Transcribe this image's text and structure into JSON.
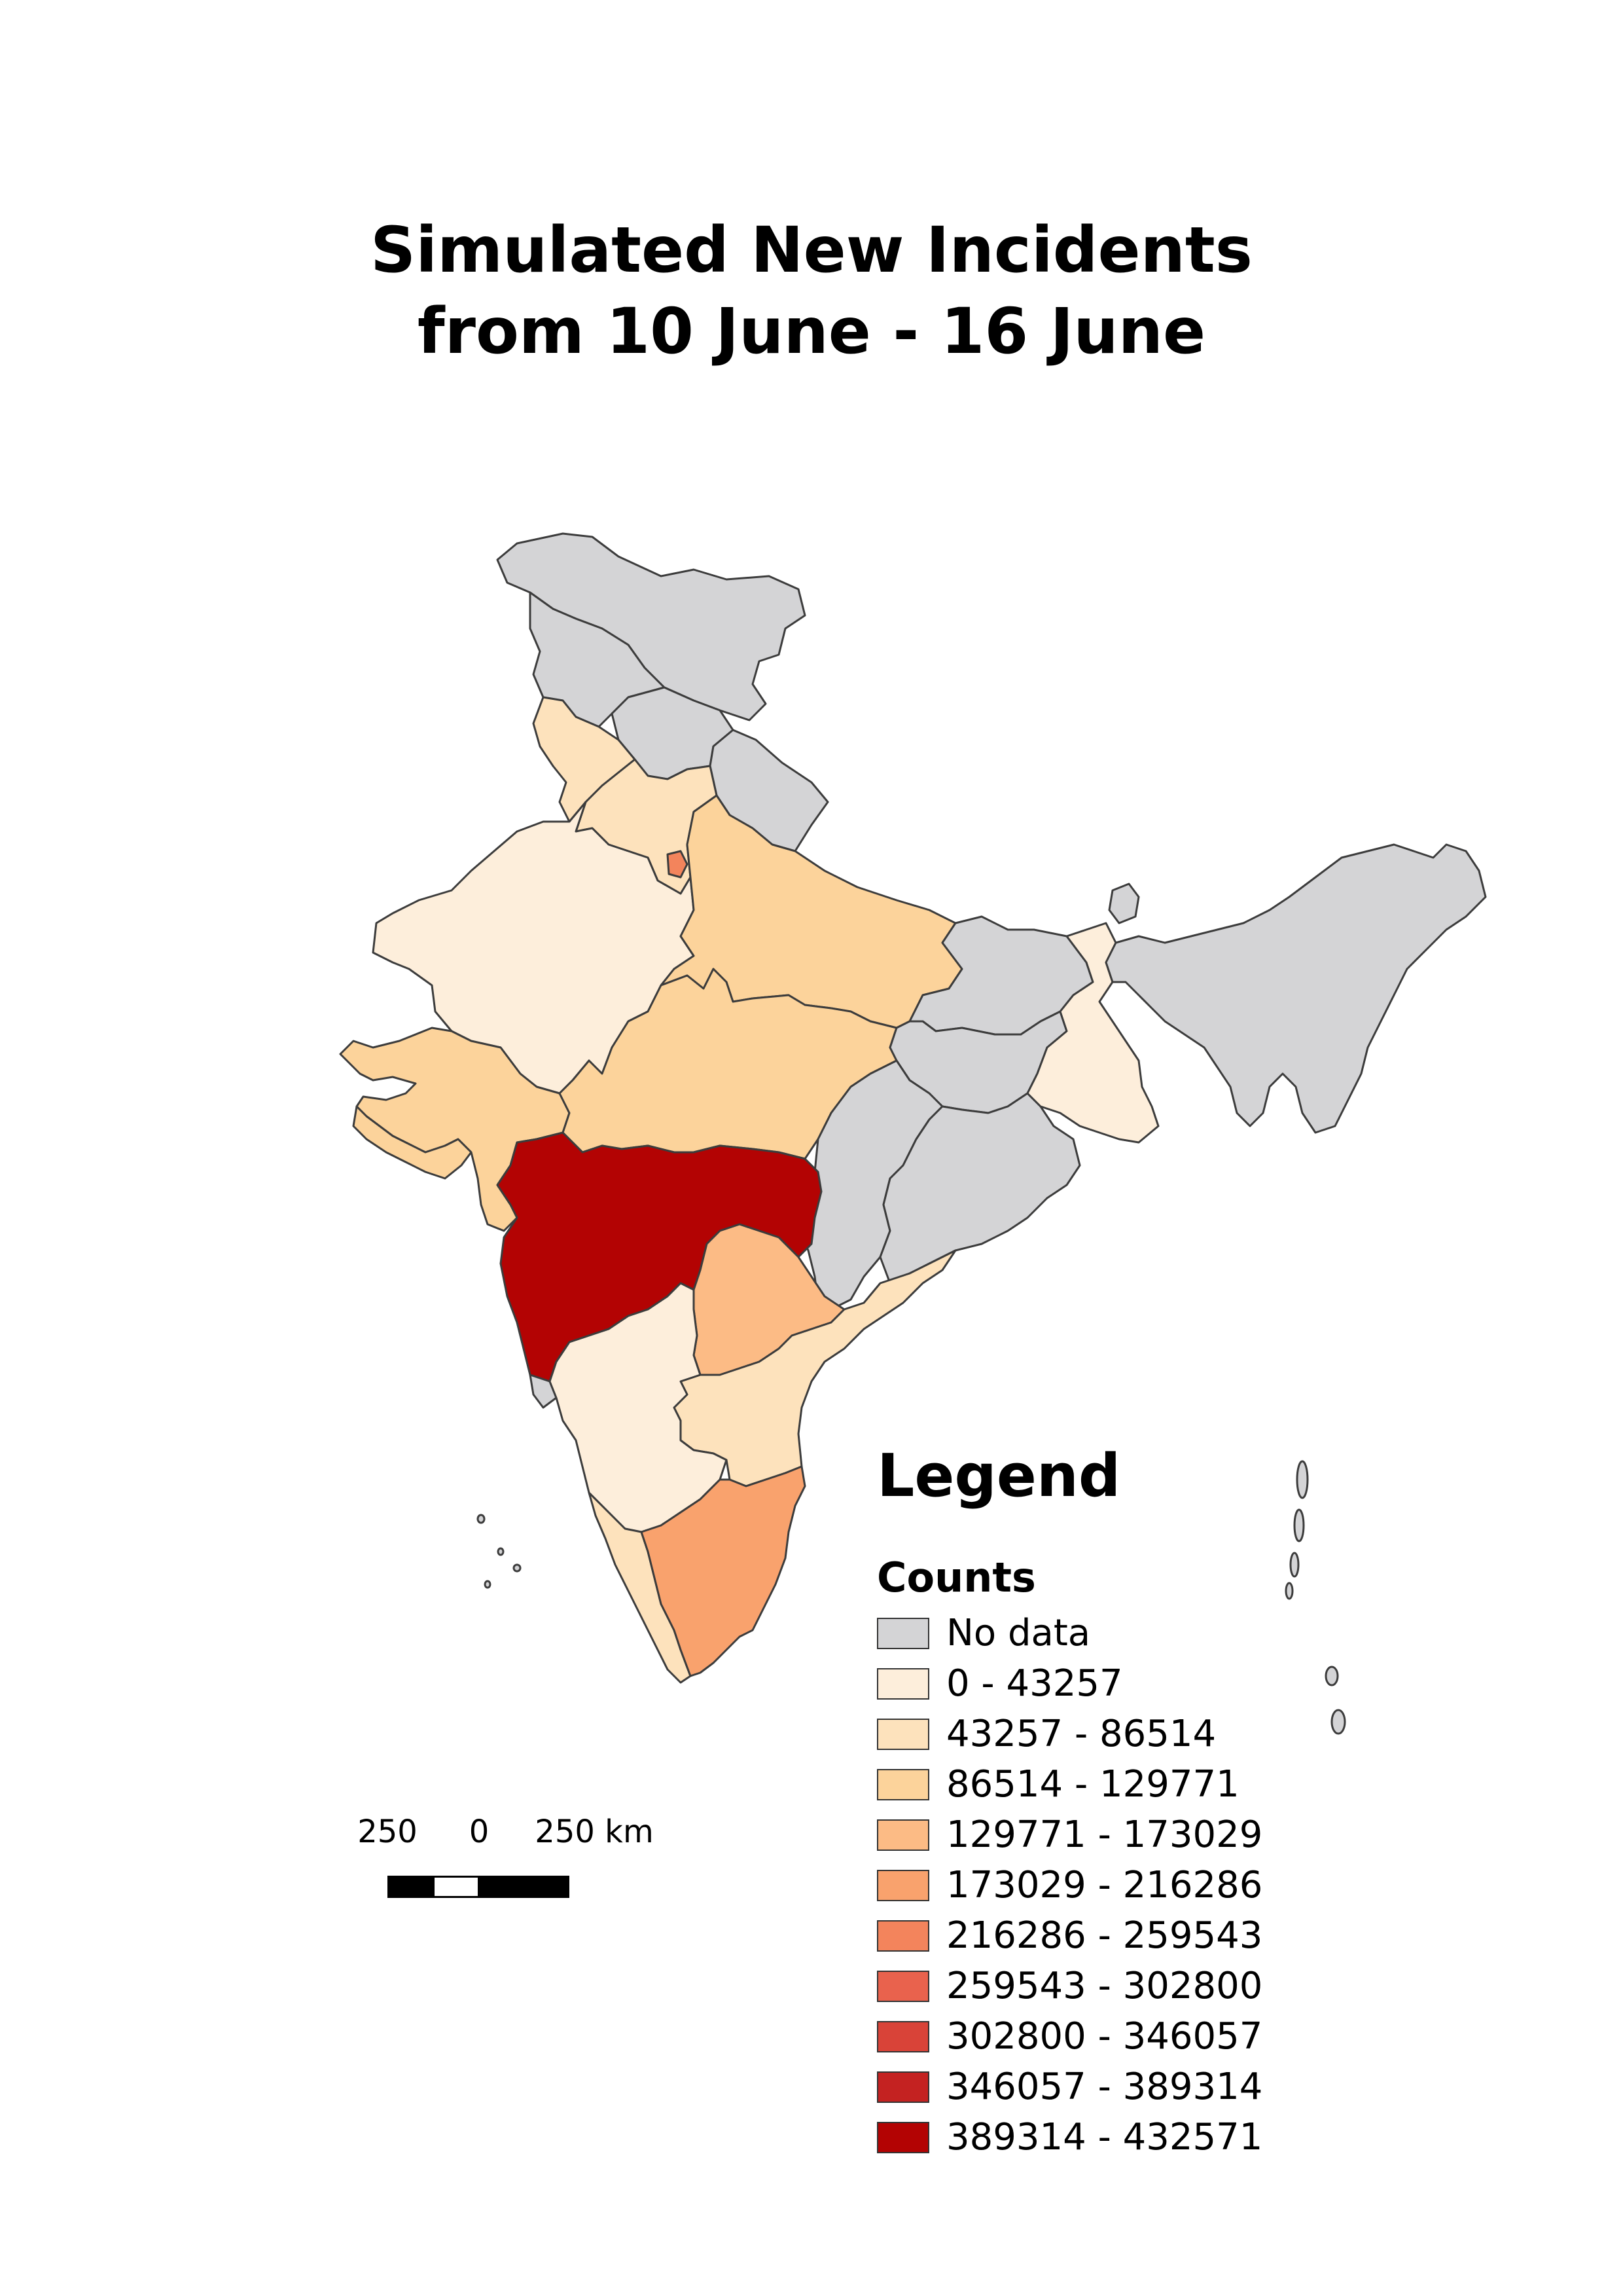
{
  "title": {
    "line1": "Simulated New Incidents",
    "line2": "from 10 June - 16 June"
  },
  "legend": {
    "title": "Legend",
    "subtitle": "Counts",
    "items": [
      {
        "label": "No data",
        "color": "#d4d4d6"
      },
      {
        "label": "0 - 43257",
        "color": "#fdeedb"
      },
      {
        "label": "43257 - 86514",
        "color": "#fde2bc"
      },
      {
        "label": "86514 - 129771",
        "color": "#fcd39b"
      },
      {
        "label": "129771 - 173029",
        "color": "#fcbb85"
      },
      {
        "label": "173029 - 216286",
        "color": "#f9a26d"
      },
      {
        "label": "216286 - 259543",
        "color": "#f3845c"
      },
      {
        "label": "259543 - 302800",
        "color": "#e9624d"
      },
      {
        "label": "302800 - 346057",
        "color": "#d94338"
      },
      {
        "label": "346057 - 389314",
        "color": "#c42221"
      },
      {
        "label": "389314 - 432571",
        "color": "#b30303"
      }
    ]
  },
  "scale_bar": {
    "left_label": "250",
    "mid_label": "0",
    "right_label": "250 km"
  },
  "map": {
    "outline_color": "#3c3c3c",
    "regions": [
      {
        "name": "Jammu and Kashmir",
        "class": "No data"
      },
      {
        "name": "Ladakh",
        "class": "No data"
      },
      {
        "name": "Himachal Pradesh",
        "class": "No data"
      },
      {
        "name": "Uttarakhand",
        "class": "No data"
      },
      {
        "name": "Punjab",
        "class": "43257 - 86514"
      },
      {
        "name": "Haryana",
        "class": "43257 - 86514"
      },
      {
        "name": "Delhi",
        "class": "216286 - 259543"
      },
      {
        "name": "Rajasthan",
        "class": "0 - 43257"
      },
      {
        "name": "Uttar Pradesh",
        "class": "86514 - 129771"
      },
      {
        "name": "Gujarat",
        "class": "86514 - 129771"
      },
      {
        "name": "Madhya Pradesh",
        "class": "86514 - 129771"
      },
      {
        "name": "Bihar",
        "class": "No data"
      },
      {
        "name": "Jharkhand",
        "class": "No data"
      },
      {
        "name": "Chhattisgarh",
        "class": "No data"
      },
      {
        "name": "Odisha",
        "class": "No data"
      },
      {
        "name": "West Bengal",
        "class": "0 - 43257"
      },
      {
        "name": "Sikkim",
        "class": "No data"
      },
      {
        "name": "North-East States",
        "class": "No data"
      },
      {
        "name": "Maharashtra",
        "class": "389314 - 432571"
      },
      {
        "name": "Goa",
        "class": "No data"
      },
      {
        "name": "Telangana",
        "class": "129771 - 173029"
      },
      {
        "name": "Andhra Pradesh",
        "class": "43257 - 86514"
      },
      {
        "name": "Karnataka",
        "class": "0 - 43257"
      },
      {
        "name": "Kerala",
        "class": "43257 - 86514"
      },
      {
        "name": "Tamil Nadu",
        "class": "173029 - 216286"
      }
    ]
  }
}
